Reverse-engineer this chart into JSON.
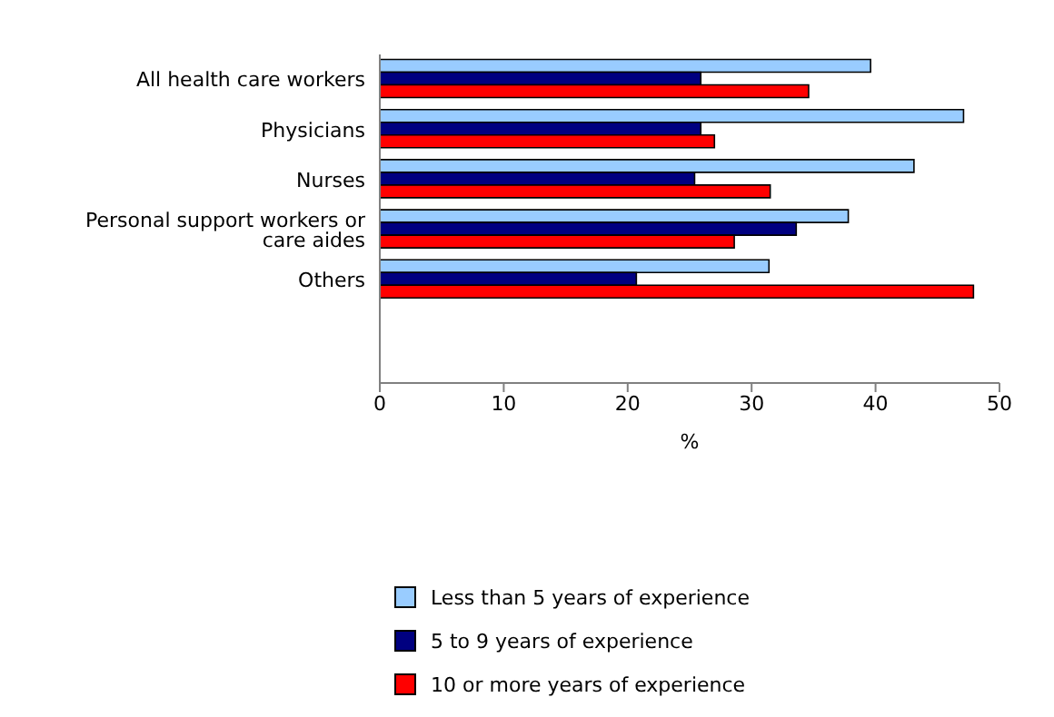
{
  "chart_data": {
    "type": "bar",
    "orientation": "horizontal",
    "xlabel": "%",
    "categories": [
      "All health care workers",
      "Physicians",
      "Nurses",
      "Personal support workers or care aides",
      "Others"
    ],
    "series": [
      {
        "name": "Less than 5 years of experience",
        "color": "#99ccff",
        "values": [
          39.6,
          47.1,
          43.1,
          37.8,
          31.4
        ]
      },
      {
        "name": "5 to 9 years of experience",
        "color": "#000080",
        "values": [
          25.9,
          25.9,
          25.4,
          33.6,
          20.7
        ]
      },
      {
        "name": "10 or more years of experience",
        "color": "#ff0000",
        "values": [
          34.6,
          27.0,
          31.5,
          28.6,
          47.9
        ]
      }
    ],
    "xlim": [
      0,
      50
    ],
    "xticks": [
      0,
      10,
      20,
      30,
      40,
      50
    ],
    "grid": false,
    "legend": "bottom"
  }
}
